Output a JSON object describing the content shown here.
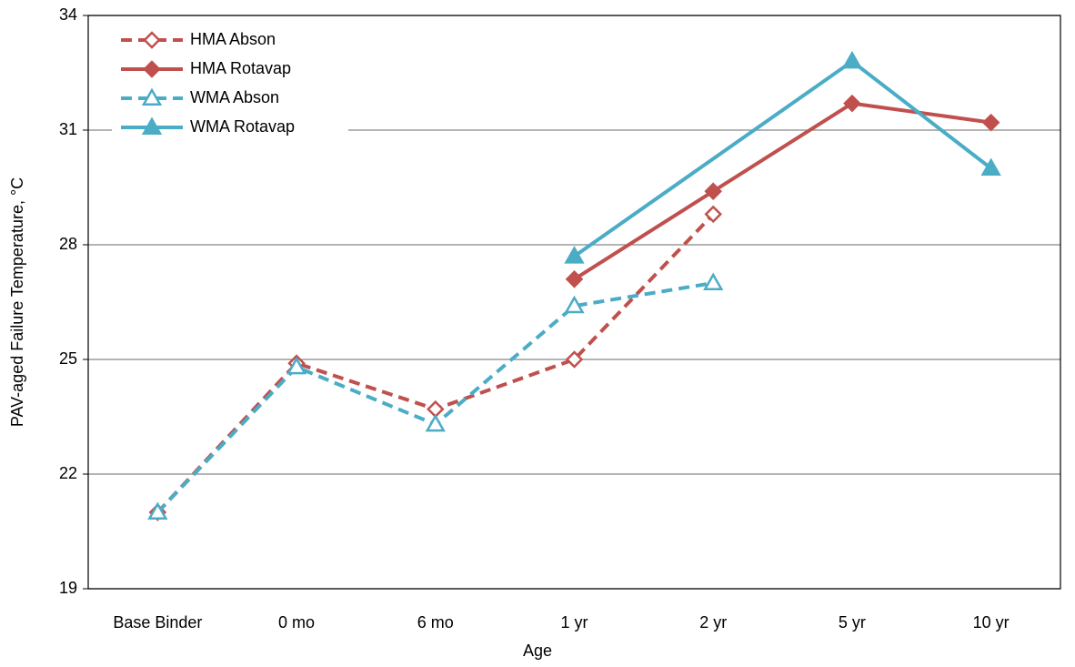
{
  "chart_data": {
    "type": "line",
    "x_label": "Age",
    "y_label": "PAV-aged Failure Temperature, °C",
    "categories": [
      "Base Binder",
      "0 mo",
      "6 mo",
      "1 yr",
      "2 yr",
      "5 yr",
      "10 yr"
    ],
    "series": [
      {
        "name": "HMA Abson",
        "color": "#c0504d",
        "dashed": true,
        "marker": "diamond",
        "filled": false,
        "values": [
          21.0,
          24.9,
          23.7,
          25.0,
          28.8,
          null,
          null
        ]
      },
      {
        "name": "HMA Rotavap",
        "color": "#c0504d",
        "dashed": false,
        "marker": "diamond",
        "filled": true,
        "values": [
          null,
          null,
          null,
          27.1,
          29.4,
          31.7,
          31.2
        ]
      },
      {
        "name": "WMA Abson",
        "color": "#4bacc6",
        "dashed": true,
        "marker": "triangle",
        "filled": false,
        "values": [
          21.0,
          24.8,
          23.3,
          26.4,
          27.0,
          null,
          null
        ]
      },
      {
        "name": "WMA Rotavap",
        "color": "#4bacc6",
        "dashed": false,
        "marker": "triangle",
        "filled": true,
        "values": [
          null,
          null,
          null,
          27.7,
          null,
          32.8,
          30.0
        ]
      }
    ],
    "span_gaps": true,
    "ylim": [
      19,
      34
    ],
    "yticks": [
      19,
      22,
      25,
      28,
      31,
      34
    ],
    "grid": true,
    "legend": "top-left"
  }
}
